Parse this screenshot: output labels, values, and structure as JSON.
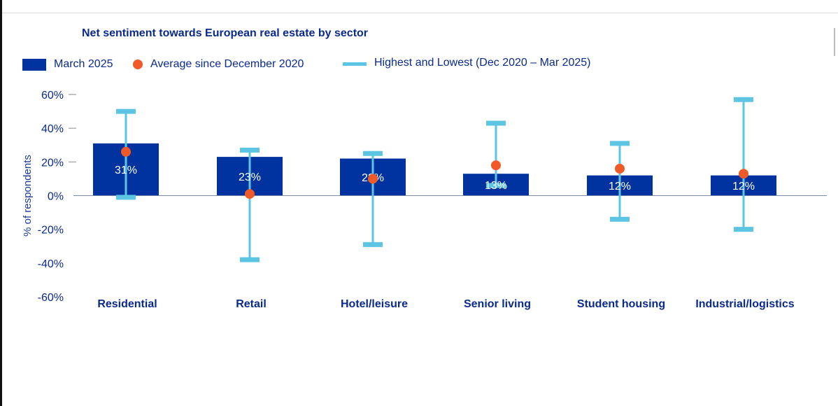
{
  "chart_data": {
    "type": "bar",
    "title": "Net sentiment towards European real estate by sector",
    "ylabel": "% of respondents",
    "ylim": [
      -60,
      60
    ],
    "yticks": [
      "60%",
      "40%",
      "20%",
      "0%",
      "-20%",
      "-40%",
      "-60%"
    ],
    "ytick_values": [
      60,
      40,
      20,
      0,
      -20,
      -40,
      -60
    ],
    "categories": [
      "Residential",
      "Retail",
      "Hotel/leisure",
      "Senior living",
      "Student housing",
      "Industrial/logistics"
    ],
    "series": [
      {
        "name": "March 2025",
        "type": "bar",
        "values": [
          31,
          23,
          22,
          13,
          12,
          12
        ],
        "labels": [
          "31%",
          "23%",
          "22%",
          "13%",
          "12%",
          "12%"
        ]
      },
      {
        "name": "Average since December 2020",
        "type": "point",
        "values": [
          26,
          1,
          10,
          18,
          16,
          13
        ]
      },
      {
        "name": "Highest and Lowest (Dec 2020 – Mar 2025)",
        "type": "range",
        "high": [
          50,
          27,
          25,
          43,
          31,
          57
        ],
        "low": [
          -1,
          -38,
          -29,
          6,
          -14,
          -20
        ]
      }
    ],
    "grid": false,
    "legend_position": "top-left",
    "colors": {
      "bar": "#0033a0",
      "average": "#f05a28",
      "range": "#5bc5e3",
      "text": "#0a2a8c",
      "axis": "#1f3a93"
    }
  },
  "legend": {
    "bar_label": "March 2025",
    "dot_label": "Average since December 2020",
    "line_label": "Highest and Lowest (Dec 2020 – Mar 2025)"
  }
}
